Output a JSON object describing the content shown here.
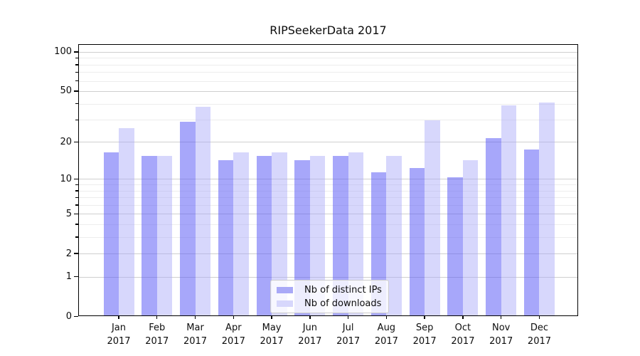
{
  "figure": {
    "title": "RIPSeekerData 2017"
  },
  "chart_data": {
    "type": "bar",
    "title": "RIPSeekerData 2017",
    "categories": [
      "Jan 2017",
      "Feb 2017",
      "Mar 2017",
      "Apr 2017",
      "May 2017",
      "Jun 2017",
      "Jul 2017",
      "Aug 2017",
      "Sep 2017",
      "Oct 2017",
      "Nov 2017",
      "Dec 2017"
    ],
    "series": [
      {
        "name": "Nb of distinct IPs",
        "values": [
          16,
          15,
          28,
          14,
          15,
          14,
          15,
          11,
          12,
          10,
          21,
          17
        ],
        "fill": "rgba(95,95,245,0.55)",
        "swatch_color": "#a9a9f7"
      },
      {
        "name": "Nb of downloads",
        "values": [
          25,
          15,
          37,
          16,
          16,
          15,
          16,
          15,
          29,
          14,
          38,
          40
        ],
        "fill": "rgba(166,166,248,0.45)",
        "swatch_color": "#d7d7fc"
      }
    ],
    "xlabel": "",
    "ylabel": "",
    "y_scale": "log1p",
    "y_major_ticks": [
      0,
      1,
      2,
      5,
      10,
      20,
      50,
      100
    ],
    "y_minor_gridlines": [
      3,
      4,
      6,
      7,
      8,
      9,
      30,
      40,
      60,
      70,
      80,
      90
    ],
    "ylim": [
      0,
      113
    ],
    "grid": "on",
    "legend_position": "lower center",
    "grid_major_color": "#cfcfcf",
    "grid_minor_color": "#ededed"
  }
}
